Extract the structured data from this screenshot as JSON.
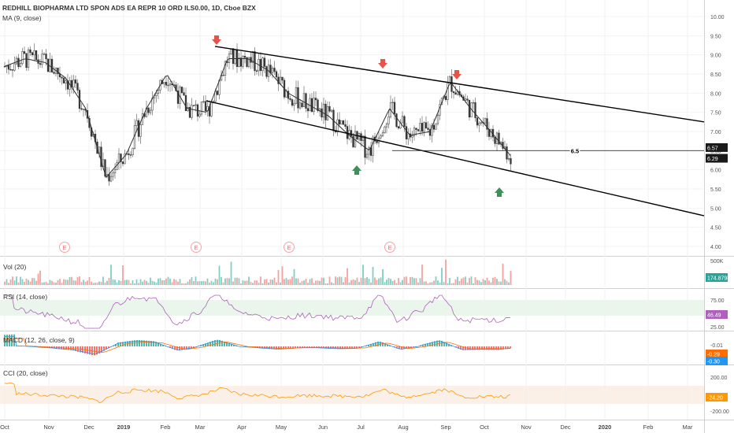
{
  "header": {
    "symbol_line": "REDHILL BIOPHARMA LTD SPON ADS EA REPR 10 ORD ILS0.00, 1D, Cboe BZX",
    "ma_label": "MA (9, close)"
  },
  "chart_data": [
    {
      "type": "line",
      "panel": "price",
      "title": "REDHILL BIOPHARMA LTD SPON ADS EA REPR 10 ORD ILS0.00, 1D, Cboe BZX",
      "ylim": [
        3.75,
        10.25
      ],
      "y_ticks": [
        "10.00",
        "9.50",
        "9.00",
        "8.50",
        "8.00",
        "7.50",
        "7.00",
        "6.50",
        "6.00",
        "5.50",
        "5.00",
        "4.50",
        "4.00"
      ],
      "x_ticks": [
        "Oct",
        "Nov",
        "Dec",
        "2019",
        "Feb",
        "Mar",
        "Apr",
        "May",
        "Jun",
        "Jul",
        "Aug",
        "Sep",
        "Oct",
        "Nov",
        "Dec",
        "2020",
        "Feb",
        "Mar"
      ],
      "series": [
        {
          "name": "MA (9, close)",
          "x": [
            "Oct 1",
            "Oct 15",
            "Nov 1",
            "Nov 15",
            "Dec 1",
            "Dec 15",
            "Jan 1",
            "Jan 15",
            "Feb 1",
            "Feb 15",
            "Mar 1",
            "Mar 15",
            "Apr 1",
            "Apr 15",
            "May 1",
            "May 15",
            "Jun 1",
            "Jun 15",
            "Jul 1",
            "Jul 15",
            "Aug 1",
            "Aug 15",
            "Sep 1",
            "Sep 15",
            "Oct 1",
            "Oct 15"
          ],
          "values": [
            8.7,
            8.9,
            8.8,
            8.4,
            7.6,
            5.8,
            6.4,
            7.6,
            8.5,
            7.6,
            7.5,
            8.9,
            8.9,
            8.6,
            8.0,
            7.7,
            7.4,
            6.9,
            6.5,
            7.6,
            6.9,
            7.0,
            8.3,
            7.6,
            7.0,
            6.35
          ]
        }
      ],
      "trendlines": [
        {
          "from": [
            "Mar 11, 2019",
            9.22
          ],
          "to": [
            "Mar 2020",
            7.25
          ]
        },
        {
          "from": [
            "Feb 28, 2019",
            7.8
          ],
          "to": [
            "Mar 2020",
            4.8
          ]
        },
        {
          "from": [
            "Jul 2019",
            6.5
          ],
          "to": [
            "Mar 2020",
            6.5
          ]
        }
      ],
      "horizontal_line_label": "6.5",
      "arrows_down": [
        "Mar 11, 2019",
        "Jul 16, 2019",
        "Sep 5, 2019"
      ],
      "arrows_up": [
        "Jun 26, 2019",
        "Oct 16, 2019"
      ],
      "earnings_markers": [
        "Nov 2018",
        "Mar 2019",
        "May 2019",
        "Jul 2019"
      ],
      "earnings_marker_label": "E",
      "price_badges": [
        {
          "label": "6.57",
          "value": 6.57
        },
        {
          "label": "6.29",
          "value": 6.29
        }
      ]
    },
    {
      "type": "bar",
      "panel": "volume",
      "title": "Vol (20)",
      "y_ticks": [
        "500K"
      ],
      "badge": "174.879K"
    },
    {
      "type": "line",
      "panel": "rsi",
      "title": "RSI (14, close)",
      "y_ticks": [
        "75.00",
        "25.00"
      ],
      "badge": "46.49"
    },
    {
      "type": "bar",
      "panel": "macd",
      "title": "MACD (12, 26, close, 9)",
      "y_ticks": [
        "-0.01",
        "-0.29",
        "-0.30"
      ]
    },
    {
      "type": "line",
      "panel": "cci",
      "title": "CCI (20, close)",
      "y_ticks": [
        "200.00",
        "-200.00"
      ],
      "badge": "-24.20"
    }
  ]
}
